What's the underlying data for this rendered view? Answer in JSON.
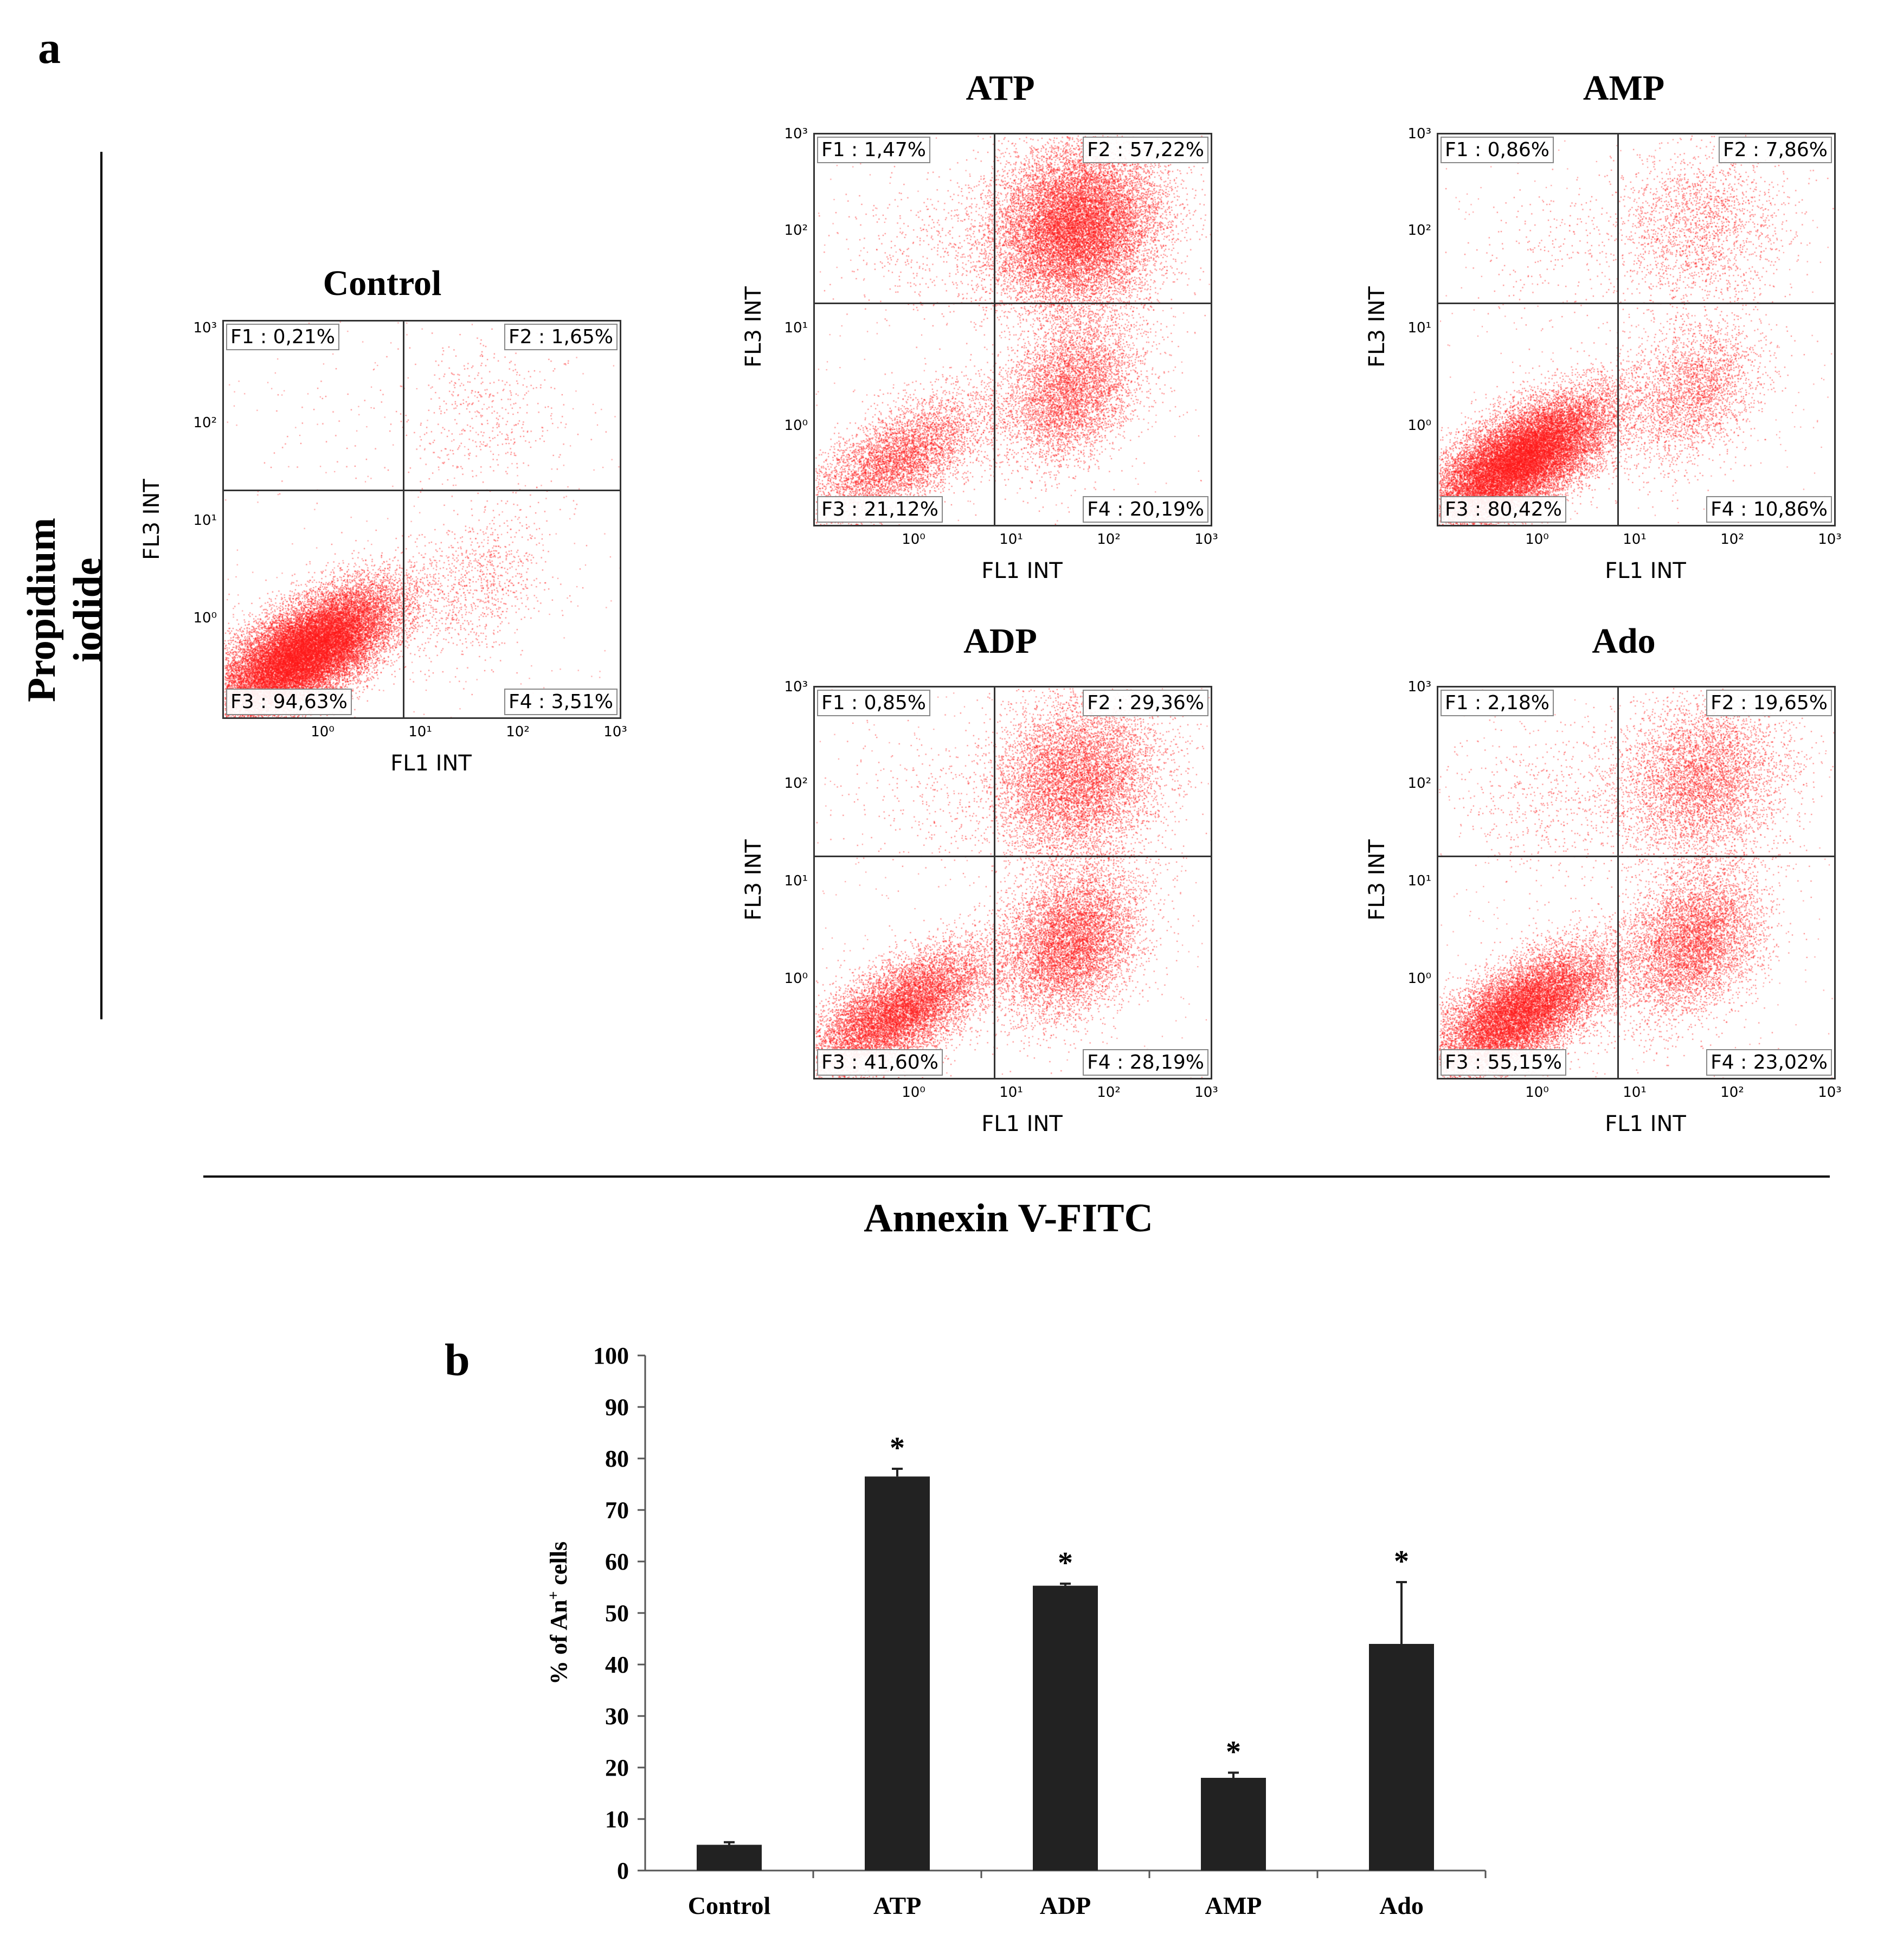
{
  "panel_a": {
    "letter": "a",
    "y_axis_title": "Propidium iodide",
    "x_axis_title": "Annexin V-FITC"
  },
  "panel_b": {
    "letter": "b"
  },
  "colors": {
    "dots": "#ff1a1a",
    "bar": "#222222"
  },
  "chart_data": [
    {
      "type": "scatter",
      "title": "Control",
      "xlabel": "FL1 INT",
      "ylabel": "FL3 INT",
      "x_ticks": [
        "10⁰",
        "10¹",
        "10²",
        "10³"
      ],
      "y_ticks": [
        "10³",
        "10²",
        "10¹",
        "10⁰"
      ],
      "quadrants": {
        "F1": "F1 : 0,21%",
        "F2": "F2 : 1,65%",
        "F3": "F3 : 94,63%",
        "F4": "F4 : 3,51%"
      },
      "quadrant_fractions": {
        "F1": 0.0021,
        "F2": 0.0165,
        "F3": 0.9463,
        "F4": 0.0351
      }
    },
    {
      "type": "scatter",
      "title": "ATP",
      "xlabel": "FL1 INT",
      "ylabel": "FL3 INT",
      "x_ticks": [
        "10⁰",
        "10¹",
        "10²",
        "10³"
      ],
      "y_ticks": [
        "10³",
        "10²",
        "10¹",
        "10⁰"
      ],
      "quadrants": {
        "F1": "F1 : 1,47%",
        "F2": "F2 : 57,22%",
        "F3": "F3 : 21,12%",
        "F4": "F4 : 20,19%"
      },
      "quadrant_fractions": {
        "F1": 0.0147,
        "F2": 0.5722,
        "F3": 0.2112,
        "F4": 0.2019
      }
    },
    {
      "type": "scatter",
      "title": "AMP",
      "xlabel": "FL1 INT",
      "ylabel": "FL3 INT",
      "x_ticks": [
        "10⁰",
        "10¹",
        "10²",
        "10³"
      ],
      "y_ticks": [
        "10³",
        "10²",
        "10¹",
        "10⁰"
      ],
      "quadrants": {
        "F1": "F1 : 0,86%",
        "F2": "F2 : 7,86%",
        "F3": "F3 : 80,42%",
        "F4": "F4 : 10,86%"
      },
      "quadrant_fractions": {
        "F1": 0.0086,
        "F2": 0.0786,
        "F3": 0.8042,
        "F4": 0.1086
      }
    },
    {
      "type": "scatter",
      "title": "ADP",
      "xlabel": "FL1 INT",
      "ylabel": "FL3 INT",
      "x_ticks": [
        "10⁰",
        "10¹",
        "10²",
        "10³"
      ],
      "y_ticks": [
        "10³",
        "10²",
        "10¹",
        "10⁰"
      ],
      "quadrants": {
        "F1": "F1 : 0,85%",
        "F2": "F2 : 29,36%",
        "F3": "F3 : 41,60%",
        "F4": "F4 : 28,19%"
      },
      "quadrant_fractions": {
        "F1": 0.0085,
        "F2": 0.2936,
        "F3": 0.416,
        "F4": 0.2819
      }
    },
    {
      "type": "scatter",
      "title": "Ado",
      "xlabel": "FL1 INT",
      "ylabel": "FL3 INT",
      "x_ticks": [
        "10⁰",
        "10¹",
        "10²",
        "10³"
      ],
      "y_ticks": [
        "10³",
        "10²",
        "10¹",
        "10⁰"
      ],
      "quadrants": {
        "F1": "F1 : 2,18%",
        "F2": "F2 : 19,65%",
        "F3": "F3 : 55,15%",
        "F4": "F4 : 23,02%"
      },
      "quadrant_fractions": {
        "F1": 0.0218,
        "F2": 0.1965,
        "F3": 0.5515,
        "F4": 0.2302
      }
    },
    {
      "type": "bar",
      "title": "",
      "categories": [
        "Control",
        "ATP",
        "ADP",
        "AMP",
        "Ado"
      ],
      "values": [
        5,
        76.5,
        55.3,
        18,
        44
      ],
      "errors": [
        0.5,
        1.5,
        0.4,
        1.0,
        12
      ],
      "significance": [
        "",
        "*",
        "*",
        "*",
        "*"
      ],
      "ylabel_prefix": "% of An",
      "ylabel_sup": "+",
      "ylabel_suffix": " cells",
      "ylim": [
        0,
        100
      ],
      "y_ticks": [
        0,
        10,
        20,
        30,
        40,
        50,
        60,
        70,
        80,
        90,
        100
      ]
    }
  ]
}
